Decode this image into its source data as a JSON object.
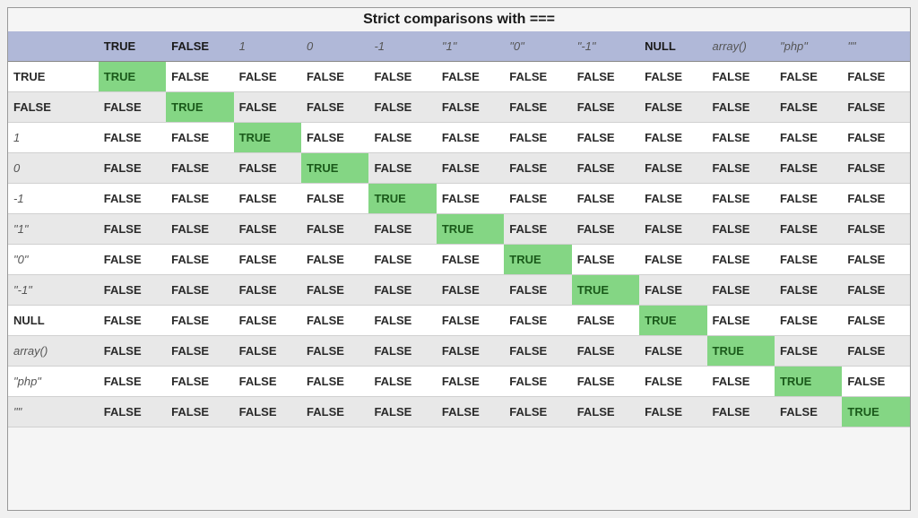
{
  "table": {
    "title": "Strict comparisons with ===",
    "columns": [
      {
        "label": "TRUE",
        "style": "bold"
      },
      {
        "label": "FALSE",
        "style": "bold"
      },
      {
        "label": "1",
        "style": "italic"
      },
      {
        "label": "0",
        "style": "italic"
      },
      {
        "label": "-1",
        "style": "italic"
      },
      {
        "label": "\"1\"",
        "style": "italic"
      },
      {
        "label": "\"0\"",
        "style": "italic"
      },
      {
        "label": "\"-1\"",
        "style": "italic"
      },
      {
        "label": "NULL",
        "style": "bold"
      },
      {
        "label": "array()",
        "style": "italic"
      },
      {
        "label": "\"php\"",
        "style": "italic"
      },
      {
        "label": "\"\"",
        "style": "italic"
      }
    ],
    "rows": [
      {
        "label": "TRUE",
        "style": "bold",
        "cells": [
          "TRUE",
          "FALSE",
          "FALSE",
          "FALSE",
          "FALSE",
          "FALSE",
          "FALSE",
          "FALSE",
          "FALSE",
          "FALSE",
          "FALSE",
          "FALSE"
        ]
      },
      {
        "label": "FALSE",
        "style": "bold",
        "cells": [
          "FALSE",
          "TRUE",
          "FALSE",
          "FALSE",
          "FALSE",
          "FALSE",
          "FALSE",
          "FALSE",
          "FALSE",
          "FALSE",
          "FALSE",
          "FALSE"
        ]
      },
      {
        "label": "1",
        "style": "italic",
        "cells": [
          "FALSE",
          "FALSE",
          "TRUE",
          "FALSE",
          "FALSE",
          "FALSE",
          "FALSE",
          "FALSE",
          "FALSE",
          "FALSE",
          "FALSE",
          "FALSE"
        ]
      },
      {
        "label": "0",
        "style": "italic",
        "cells": [
          "FALSE",
          "FALSE",
          "FALSE",
          "TRUE",
          "FALSE",
          "FALSE",
          "FALSE",
          "FALSE",
          "FALSE",
          "FALSE",
          "FALSE",
          "FALSE"
        ]
      },
      {
        "label": "-1",
        "style": "italic",
        "cells": [
          "FALSE",
          "FALSE",
          "FALSE",
          "FALSE",
          "TRUE",
          "FALSE",
          "FALSE",
          "FALSE",
          "FALSE",
          "FALSE",
          "FALSE",
          "FALSE"
        ]
      },
      {
        "label": "\"1\"",
        "style": "italic",
        "cells": [
          "FALSE",
          "FALSE",
          "FALSE",
          "FALSE",
          "FALSE",
          "TRUE",
          "FALSE",
          "FALSE",
          "FALSE",
          "FALSE",
          "FALSE",
          "FALSE"
        ]
      },
      {
        "label": "\"0\"",
        "style": "italic",
        "cells": [
          "FALSE",
          "FALSE",
          "FALSE",
          "FALSE",
          "FALSE",
          "FALSE",
          "TRUE",
          "FALSE",
          "FALSE",
          "FALSE",
          "FALSE",
          "FALSE"
        ]
      },
      {
        "label": "\"-1\"",
        "style": "italic",
        "cells": [
          "FALSE",
          "FALSE",
          "FALSE",
          "FALSE",
          "FALSE",
          "FALSE",
          "FALSE",
          "TRUE",
          "FALSE",
          "FALSE",
          "FALSE",
          "FALSE"
        ]
      },
      {
        "label": "NULL",
        "style": "bold",
        "cells": [
          "FALSE",
          "FALSE",
          "FALSE",
          "FALSE",
          "FALSE",
          "FALSE",
          "FALSE",
          "FALSE",
          "TRUE",
          "FALSE",
          "FALSE",
          "FALSE"
        ]
      },
      {
        "label": "array()",
        "style": "italic",
        "cells": [
          "FALSE",
          "FALSE",
          "FALSE",
          "FALSE",
          "FALSE",
          "FALSE",
          "FALSE",
          "FALSE",
          "FALSE",
          "TRUE",
          "FALSE",
          "FALSE"
        ]
      },
      {
        "label": "\"php\"",
        "style": "italic",
        "cells": [
          "FALSE",
          "FALSE",
          "FALSE",
          "FALSE",
          "FALSE",
          "FALSE",
          "FALSE",
          "FALSE",
          "FALSE",
          "FALSE",
          "TRUE",
          "FALSE"
        ]
      },
      {
        "label": "\"\"",
        "style": "italic",
        "cells": [
          "FALSE",
          "FALSE",
          "FALSE",
          "FALSE",
          "FALSE",
          "FALSE",
          "FALSE",
          "FALSE",
          "FALSE",
          "FALSE",
          "FALSE",
          "TRUE"
        ]
      }
    ],
    "colors": {
      "header_bg": "#b0b8d8",
      "row_odd_bg": "#ffffff",
      "row_even_bg": "#e8e8e8",
      "true_bg": "#84d684",
      "border": "#d0d0d0",
      "container_border": "#999999",
      "page_bg": "#f0f0f0"
    },
    "font": {
      "family": "sans-serif",
      "cell_fontsize": 13,
      "title_fontsize": 16
    }
  }
}
